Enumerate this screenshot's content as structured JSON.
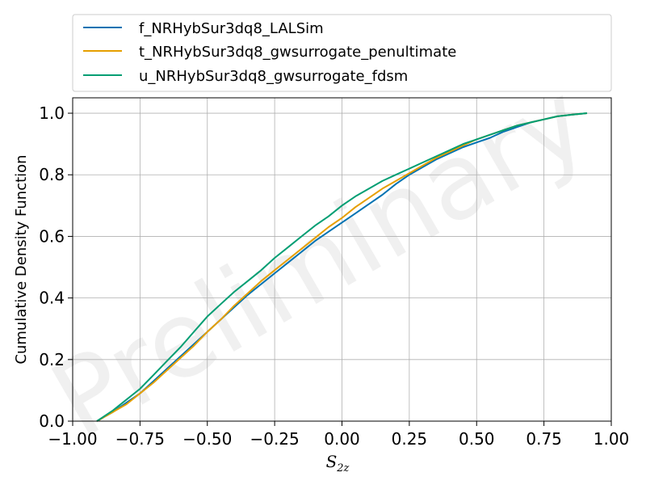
{
  "chart_data": {
    "type": "line",
    "title": "",
    "xlabel": {
      "main": "S",
      "sub": "2z"
    },
    "ylabel": "Cumulative Density Function",
    "xlim": [
      -1.0,
      1.0
    ],
    "ylim": [
      0.0,
      1.05
    ],
    "xticks": [
      -1.0,
      -0.75,
      -0.5,
      -0.25,
      0.0,
      0.25,
      0.5,
      0.75,
      1.0
    ],
    "xtick_labels": [
      "−1.00",
      "−0.75",
      "−0.50",
      "−0.25",
      "0.00",
      "0.25",
      "0.50",
      "0.75",
      "1.00"
    ],
    "yticks": [
      0.0,
      0.2,
      0.4,
      0.6,
      0.8,
      1.0
    ],
    "ytick_labels": [
      "0.0",
      "0.2",
      "0.4",
      "0.6",
      "0.8",
      "1.0"
    ],
    "grid": true,
    "legend_position": "above plot",
    "watermark": "Preliminary",
    "series": [
      {
        "name": "f_NRHybSur3dq8_LALSim",
        "color": "#0072B2",
        "x": [
          -0.91,
          -0.85,
          -0.8,
          -0.75,
          -0.7,
          -0.65,
          -0.6,
          -0.55,
          -0.5,
          -0.45,
          -0.4,
          -0.35,
          -0.3,
          -0.25,
          -0.2,
          -0.15,
          -0.1,
          -0.05,
          0.0,
          0.05,
          0.1,
          0.15,
          0.2,
          0.25,
          0.3,
          0.35,
          0.4,
          0.45,
          0.5,
          0.55,
          0.6,
          0.65,
          0.7,
          0.75,
          0.8,
          0.85,
          0.91
        ],
        "y": [
          0.0,
          0.03,
          0.06,
          0.09,
          0.13,
          0.17,
          0.21,
          0.25,
          0.29,
          0.33,
          0.37,
          0.41,
          0.445,
          0.48,
          0.515,
          0.55,
          0.585,
          0.615,
          0.645,
          0.675,
          0.705,
          0.735,
          0.77,
          0.8,
          0.825,
          0.85,
          0.87,
          0.89,
          0.905,
          0.92,
          0.94,
          0.955,
          0.97,
          0.98,
          0.99,
          0.995,
          1.0
        ]
      },
      {
        "name": "t_NRHybSur3dq8_gwsurrogate_penultimate",
        "color": "#E69F00",
        "x": [
          -0.91,
          -0.85,
          -0.8,
          -0.75,
          -0.7,
          -0.65,
          -0.6,
          -0.55,
          -0.5,
          -0.45,
          -0.4,
          -0.35,
          -0.3,
          -0.25,
          -0.2,
          -0.15,
          -0.1,
          -0.05,
          0.0,
          0.05,
          0.1,
          0.15,
          0.2,
          0.25,
          0.3,
          0.35,
          0.4,
          0.45,
          0.5,
          0.55,
          0.6,
          0.65,
          0.7,
          0.75,
          0.8,
          0.85,
          0.91
        ],
        "y": [
          0.0,
          0.03,
          0.055,
          0.09,
          0.125,
          0.165,
          0.205,
          0.245,
          0.29,
          0.33,
          0.375,
          0.415,
          0.455,
          0.49,
          0.525,
          0.56,
          0.595,
          0.63,
          0.66,
          0.695,
          0.725,
          0.755,
          0.78,
          0.805,
          0.83,
          0.855,
          0.875,
          0.895,
          0.915,
          0.93,
          0.945,
          0.96,
          0.97,
          0.98,
          0.99,
          0.995,
          1.0
        ]
      },
      {
        "name": "u_NRHybSur3dq8_gwsurrogate_fdsm",
        "color": "#009E73",
        "x": [
          -0.91,
          -0.85,
          -0.8,
          -0.75,
          -0.7,
          -0.65,
          -0.6,
          -0.55,
          -0.5,
          -0.45,
          -0.4,
          -0.35,
          -0.3,
          -0.25,
          -0.2,
          -0.15,
          -0.1,
          -0.05,
          0.0,
          0.05,
          0.1,
          0.15,
          0.2,
          0.25,
          0.3,
          0.35,
          0.4,
          0.45,
          0.5,
          0.55,
          0.6,
          0.65,
          0.7,
          0.75,
          0.8,
          0.85,
          0.91
        ],
        "y": [
          0.0,
          0.035,
          0.07,
          0.105,
          0.15,
          0.195,
          0.24,
          0.29,
          0.34,
          0.38,
          0.42,
          0.455,
          0.49,
          0.53,
          0.565,
          0.6,
          0.635,
          0.665,
          0.7,
          0.73,
          0.755,
          0.78,
          0.8,
          0.82,
          0.84,
          0.86,
          0.88,
          0.9,
          0.915,
          0.93,
          0.945,
          0.96,
          0.97,
          0.98,
          0.99,
          0.995,
          1.0
        ]
      }
    ]
  }
}
